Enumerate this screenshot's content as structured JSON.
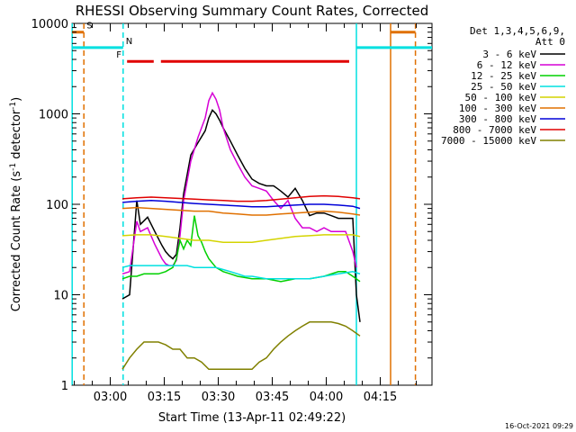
{
  "chart_data": {
    "type": "line",
    "title": "RHESSI Observing Summary Count Rates, Corrected",
    "xlabel": "Start Time (13-Apr-11 02:49:22)",
    "ylabel": "Corrected Count Rate (s⁻¹ detector⁻¹)",
    "x_unit": "minutes since 02:49:22",
    "xlim": [
      0,
      100
    ],
    "ylim": [
      1,
      10000
    ],
    "yscale": "log",
    "x_ticks": [
      {
        "value": 10.63,
        "label": "03:00"
      },
      {
        "value": 25.63,
        "label": "03:15"
      },
      {
        "value": 40.63,
        "label": "03:30"
      },
      {
        "value": 55.63,
        "label": "03:45"
      },
      {
        "value": 70.63,
        "label": "04:00"
      },
      {
        "value": 85.63,
        "label": "04:15"
      }
    ],
    "y_ticks": [
      {
        "value": 1,
        "label": "1"
      },
      {
        "value": 10,
        "label": "10"
      },
      {
        "value": 100,
        "label": "100"
      },
      {
        "value": 1000,
        "label": "1000"
      },
      {
        "value": 10000,
        "label": "10000"
      }
    ],
    "legend_header": [
      "Det 1,3,4,5,6,9,",
      "Att 0"
    ],
    "legend_position": "right",
    "series": [
      {
        "name": "3 - 6 keV",
        "color": "#000000",
        "x": [
          14,
          16,
          18,
          19,
          21,
          23,
          25,
          26,
          27,
          28,
          29,
          30,
          31,
          33,
          35,
          37,
          38,
          39,
          40,
          41,
          42,
          44,
          46,
          48,
          50,
          52,
          54,
          56,
          57,
          58,
          60,
          62,
          64,
          66,
          68,
          70,
          72,
          74,
          76,
          78,
          79,
          80
        ],
        "y": [
          9,
          10,
          110,
          60,
          72,
          50,
          35,
          30,
          27,
          25,
          28,
          55,
          130,
          350,
          480,
          650,
          900,
          1100,
          1000,
          850,
          700,
          500,
          350,
          250,
          190,
          170,
          160,
          160,
          150,
          140,
          120,
          150,
          110,
          75,
          80,
          80,
          75,
          70,
          70,
          70,
          10,
          5
        ]
      },
      {
        "name": "6 - 12 keV",
        "color": "#d600d6",
        "x": [
          14,
          16,
          18,
          19,
          21,
          23,
          25,
          26,
          27,
          28,
          29,
          30,
          31,
          33,
          35,
          37,
          38,
          39,
          40,
          41,
          42,
          44,
          46,
          48,
          50,
          52,
          54,
          56,
          58,
          60,
          62,
          64,
          66,
          68,
          70,
          72,
          74,
          76,
          78,
          79
        ],
        "y": [
          17,
          18,
          65,
          50,
          55,
          36,
          25,
          22,
          21,
          21,
          24,
          45,
          110,
          300,
          550,
          900,
          1400,
          1700,
          1450,
          1100,
          700,
          400,
          280,
          200,
          160,
          150,
          140,
          110,
          90,
          110,
          70,
          55,
          55,
          50,
          55,
          50,
          50,
          50,
          30,
          20
        ]
      },
      {
        "name": "12 - 25 keV",
        "color": "#00d000",
        "x": [
          14,
          16,
          18,
          20,
          22,
          24,
          26,
          28,
          29,
          30,
          31,
          32,
          33,
          34,
          35,
          36,
          37,
          38,
          40,
          42,
          44,
          46,
          50,
          54,
          58,
          62,
          66,
          70,
          74,
          76,
          78,
          80
        ],
        "y": [
          15,
          16,
          16,
          17,
          17,
          17,
          18,
          20,
          25,
          40,
          32,
          40,
          35,
          75,
          45,
          38,
          30,
          25,
          20,
          18,
          17,
          16,
          15,
          15,
          14,
          15,
          15,
          16,
          18,
          18,
          16,
          14
        ]
      },
      {
        "name": "25 - 50 keV",
        "color": "#00e0e0",
        "x": [
          14,
          16,
          18,
          20,
          22,
          24,
          26,
          28,
          30,
          32,
          34,
          36,
          38,
          40,
          42,
          44,
          46,
          48,
          50,
          54,
          58,
          62,
          66,
          70,
          74,
          78,
          80
        ],
        "y": [
          20,
          21,
          21,
          21,
          21,
          21,
          21,
          21,
          21,
          21,
          20,
          20,
          20,
          20,
          19,
          18,
          17,
          16,
          16,
          15,
          15,
          15,
          15,
          16,
          17,
          18,
          17
        ]
      },
      {
        "name": "50 - 100 keV",
        "color": "#d4d400",
        "x": [
          14,
          18,
          22,
          26,
          30,
          34,
          38,
          42,
          46,
          50,
          54,
          58,
          62,
          66,
          70,
          74,
          78,
          80
        ],
        "y": [
          45,
          46,
          46,
          44,
          42,
          40,
          40,
          38,
          38,
          38,
          40,
          42,
          44,
          45,
          46,
          46,
          46,
          44
        ]
      },
      {
        "name": "100 - 300 keV",
        "color": "#e07000",
        "x": [
          14,
          18,
          22,
          26,
          30,
          34,
          38,
          42,
          46,
          50,
          54,
          58,
          62,
          66,
          70,
          74,
          78,
          80
        ],
        "y": [
          90,
          92,
          90,
          88,
          86,
          84,
          84,
          80,
          78,
          76,
          76,
          78,
          80,
          82,
          84,
          82,
          78,
          76
        ]
      },
      {
        "name": "300 - 800 keV",
        "color": "#0000d8",
        "x": [
          14,
          18,
          22,
          26,
          30,
          34,
          38,
          42,
          46,
          50,
          54,
          58,
          62,
          66,
          70,
          74,
          78,
          80
        ],
        "y": [
          105,
          108,
          110,
          108,
          105,
          102,
          100,
          98,
          96,
          94,
          94,
          96,
          98,
          100,
          100,
          98,
          95,
          90
        ]
      },
      {
        "name": "800 - 7000 keV",
        "color": "#e00000",
        "x": [
          14,
          18,
          22,
          26,
          30,
          34,
          38,
          42,
          46,
          50,
          54,
          58,
          62,
          66,
          70,
          74,
          78,
          80
        ],
        "y": [
          115,
          118,
          120,
          118,
          116,
          114,
          112,
          110,
          108,
          108,
          110,
          114,
          118,
          122,
          124,
          122,
          118,
          115
        ]
      },
      {
        "name": "7000 - 15000 keV",
        "color": "#808000",
        "x": [
          14,
          16,
          18,
          20,
          22,
          24,
          26,
          28,
          30,
          32,
          34,
          36,
          38,
          40,
          42,
          44,
          46,
          48,
          50,
          52,
          54,
          56,
          58,
          60,
          62,
          64,
          66,
          68,
          70,
          72,
          74,
          76,
          78,
          80
        ],
        "y": [
          1.5,
          2,
          2.5,
          3,
          3,
          3,
          2.8,
          2.5,
          2.5,
          2,
          2,
          1.8,
          1.5,
          1.5,
          1.5,
          1.5,
          1.5,
          1.5,
          1.5,
          1.8,
          2,
          2.5,
          3,
          3.5,
          4,
          4.5,
          5,
          5,
          5,
          5,
          4.8,
          4.5,
          4,
          3.5
        ]
      }
    ],
    "vertical_markers": [
      {
        "x": 3.3,
        "color": "#e07000",
        "style": "dashed"
      },
      {
        "x": 14.2,
        "color": "#00e0e0",
        "style": "dashed"
      },
      {
        "x": 79.0,
        "color": "#00e0e0",
        "style": "solid"
      },
      {
        "x": 88.5,
        "color": "#e07000",
        "style": "solid"
      },
      {
        "x": 95.4,
        "color": "#e07000",
        "style": "dashed"
      },
      {
        "x": 0.05,
        "color": "#00e0e0",
        "style": "solid"
      }
    ],
    "flag_bars": [
      {
        "label": "S",
        "color": "#e07000",
        "segments": [
          [
            0,
            3.3
          ],
          [
            88.5,
            95.4
          ]
        ],
        "level": 8000
      },
      {
        "label": "N",
        "color": "#00e0e0",
        "segments": [
          [
            0,
            14.2
          ],
          [
            79.0,
            100
          ]
        ],
        "level": 5400
      },
      {
        "label": "F",
        "color": "#e00000",
        "segments": [
          [
            15.3,
            22.7
          ],
          [
            24.7,
            77.0
          ]
        ],
        "level": 3800
      }
    ]
  },
  "timestamp": "16-Oct-2021 09:29"
}
